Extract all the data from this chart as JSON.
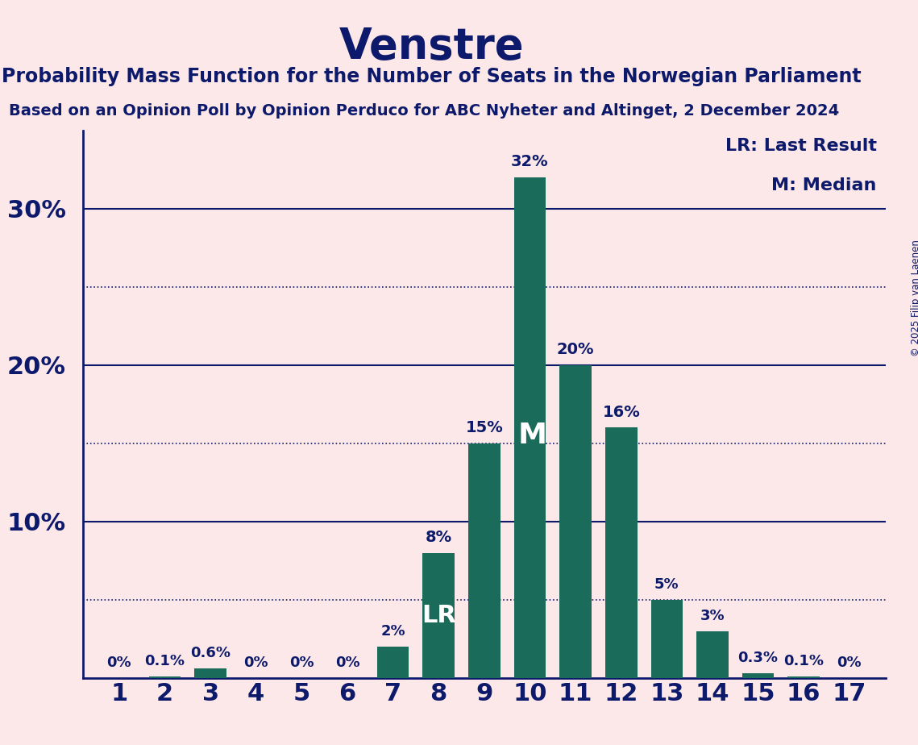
{
  "categories": [
    1,
    2,
    3,
    4,
    5,
    6,
    7,
    8,
    9,
    10,
    11,
    12,
    13,
    14,
    15,
    16,
    17
  ],
  "values": [
    0.0,
    0.1,
    0.6,
    0.0,
    0.0,
    0.0,
    2.0,
    8.0,
    15.0,
    32.0,
    20.0,
    16.0,
    5.0,
    3.0,
    0.3,
    0.1,
    0.0
  ],
  "bar_color": "#1a6b5a",
  "background_color": "#fce8e8",
  "title": "Venstre",
  "subtitle1": "Probability Mass Function for the Number of Seats in the Norwegian Parliament",
  "subtitle2": "Based on an Opinion Poll by Opinion Perduco for ABC Nyheter and Altinget, 2 December 2024",
  "ylabel_ticks": [
    10,
    20,
    30
  ],
  "dotted_ticks": [
    5,
    15,
    25
  ],
  "LR_bar": 8,
  "Median_bar": 10,
  "axis_color": "#0d1a6b",
  "text_color": "#0d1a6b",
  "bar_label_color_white": "#ffffff",
  "copyright_text": "© 2025 Filip van Laenen",
  "legend_LR": "LR: Last Result",
  "legend_M": "M: Median",
  "ylim": [
    0,
    35
  ],
  "title_fontsize": 38,
  "subtitle1_fontsize": 17,
  "subtitle2_fontsize": 14,
  "ytick_fontsize": 22,
  "xtick_fontsize": 22,
  "bar_label_fontsize_small": 13,
  "bar_label_fontsize_large": 14,
  "legend_fontsize": 16
}
